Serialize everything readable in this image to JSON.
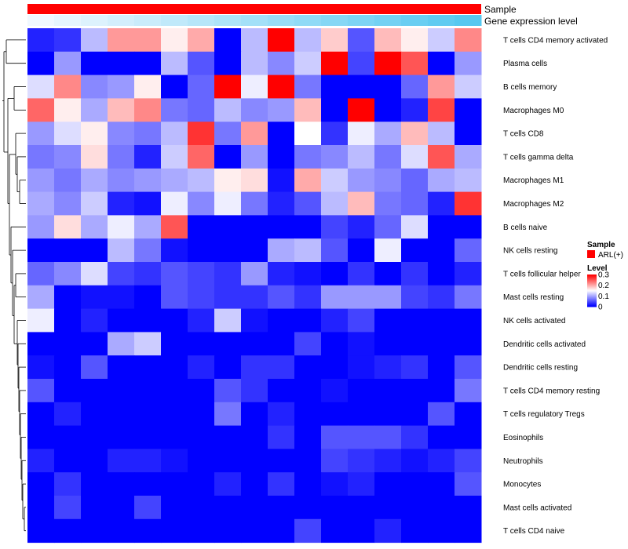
{
  "chart_data": {
    "type": "heatmap",
    "title": "",
    "rows": [
      "T cells CD4 memory activated",
      "Plasma cells",
      "B cells memory",
      "Macrophages M0",
      "T cells CD8",
      "T cells gamma delta",
      "Macrophages M1",
      "Macrophages M2",
      "B cells naive",
      "NK cells resting",
      "T cells follicular helper",
      "Mast cells resting",
      "NK cells activated",
      "Dendritic cells activated",
      "Dendritic cells resting",
      "T cells CD4 memory resting",
      "T cells regulatory  Tregs",
      "Eosinophils",
      "Neutrophils",
      "Monocytes",
      "Mast cells activated",
      "T cells CD4 naive"
    ],
    "n_columns": 17,
    "values": [
      [
        0.02,
        0.03,
        0.11,
        0.21,
        0.21,
        0.16,
        0.2,
        0.0,
        0.11,
        0.3,
        0.11,
        0.18,
        0.05,
        0.19,
        0.16,
        0.12,
        0.22
      ],
      [
        0.0,
        0.09,
        0.0,
        0.0,
        0.0,
        0.11,
        0.05,
        0.0,
        0.11,
        0.08,
        0.12,
        0.3,
        0.04,
        0.3,
        0.25,
        0.0,
        0.09
      ],
      [
        0.13,
        0.22,
        0.08,
        0.09,
        0.16,
        0.0,
        0.06,
        0.3,
        0.14,
        0.3,
        0.07,
        0.0,
        0.0,
        0.0,
        0.06,
        0.21,
        0.12
      ],
      [
        0.24,
        0.16,
        0.1,
        0.19,
        0.22,
        0.07,
        0.06,
        0.11,
        0.08,
        0.09,
        0.19,
        0.0,
        0.3,
        0.0,
        0.02,
        0.26,
        0.0
      ],
      [
        0.09,
        0.13,
        0.16,
        0.08,
        0.07,
        0.11,
        0.27,
        0.07,
        0.21,
        0.0,
        0.15,
        0.03,
        0.14,
        0.1,
        0.19,
        0.11,
        0.0
      ],
      [
        0.07,
        0.08,
        0.17,
        0.07,
        0.02,
        0.12,
        0.24,
        0.0,
        0.09,
        0.0,
        0.07,
        0.08,
        0.11,
        0.07,
        0.13,
        0.25,
        0.1
      ],
      [
        0.09,
        0.07,
        0.1,
        0.08,
        0.09,
        0.1,
        0.11,
        0.16,
        0.17,
        0.01,
        0.2,
        0.12,
        0.09,
        0.08,
        0.06,
        0.1,
        0.11
      ],
      [
        0.1,
        0.08,
        0.12,
        0.02,
        0.01,
        0.14,
        0.08,
        0.14,
        0.07,
        0.02,
        0.05,
        0.11,
        0.19,
        0.07,
        0.06,
        0.02,
        0.27
      ],
      [
        0.09,
        0.17,
        0.1,
        0.14,
        0.1,
        0.25,
        0.0,
        0.0,
        0.0,
        0.0,
        0.0,
        0.04,
        0.02,
        0.06,
        0.13,
        0.0,
        0.0
      ],
      [
        0.0,
        0.0,
        0.0,
        0.11,
        0.07,
        0.01,
        0.0,
        0.0,
        0.0,
        0.1,
        0.11,
        0.05,
        0.0,
        0.14,
        0.0,
        0.0,
        0.06
      ],
      [
        0.06,
        0.08,
        0.13,
        0.04,
        0.03,
        0.05,
        0.04,
        0.03,
        0.09,
        0.02,
        0.01,
        0.0,
        0.03,
        0.0,
        0.03,
        0.0,
        0.02
      ],
      [
        0.1,
        0.0,
        0.01,
        0.01,
        0.0,
        0.05,
        0.04,
        0.03,
        0.03,
        0.05,
        0.03,
        0.09,
        0.09,
        0.09,
        0.04,
        0.03,
        0.07
      ],
      [
        0.14,
        0.0,
        0.02,
        0.0,
        0.0,
        0.0,
        0.02,
        0.12,
        0.01,
        0.0,
        0.0,
        0.02,
        0.04,
        0.0,
        0.0,
        0.0,
        0.0
      ],
      [
        0.0,
        0.0,
        0.0,
        0.1,
        0.12,
        0.0,
        0.0,
        0.0,
        0.0,
        0.0,
        0.04,
        0.0,
        0.01,
        0.0,
        0.0,
        0.0,
        0.0
      ],
      [
        0.01,
        0.0,
        0.05,
        0.0,
        0.0,
        0.0,
        0.02,
        0.0,
        0.03,
        0.03,
        0.0,
        0.0,
        0.01,
        0.02,
        0.03,
        0.0,
        0.05
      ],
      [
        0.05,
        0.0,
        0.0,
        0.0,
        0.0,
        0.0,
        0.0,
        0.05,
        0.03,
        0.0,
        0.0,
        0.01,
        0.0,
        0.0,
        0.0,
        0.0,
        0.07
      ],
      [
        0.0,
        0.02,
        0.0,
        0.0,
        0.0,
        0.0,
        0.0,
        0.07,
        0.0,
        0.02,
        0.0,
        0.0,
        0.0,
        0.0,
        0.0,
        0.05,
        0.0
      ],
      [
        0.0,
        0.0,
        0.0,
        0.0,
        0.0,
        0.0,
        0.0,
        0.0,
        0.0,
        0.03,
        0.0,
        0.05,
        0.05,
        0.05,
        0.03,
        0.0,
        0.0
      ],
      [
        0.02,
        0.0,
        0.0,
        0.02,
        0.02,
        0.01,
        0.0,
        0.0,
        0.0,
        0.0,
        0.0,
        0.04,
        0.03,
        0.02,
        0.01,
        0.02,
        0.04
      ],
      [
        0.0,
        0.03,
        0.0,
        0.0,
        0.0,
        0.0,
        0.0,
        0.02,
        0.0,
        0.03,
        0.0,
        0.01,
        0.02,
        0.0,
        0.0,
        0.0,
        0.05
      ],
      [
        0.0,
        0.04,
        0.0,
        0.0,
        0.04,
        0.0,
        0.0,
        0.0,
        0.0,
        0.0,
        0.0,
        0.0,
        0.0,
        0.0,
        0.0,
        0.0,
        0.0
      ],
      [
        0.0,
        0.0,
        0.0,
        0.0,
        0.0,
        0.0,
        0.0,
        0.0,
        0.0,
        0.0,
        0.04,
        0.0,
        0.0,
        0.02,
        0.0,
        0.0,
        0.0
      ]
    ],
    "column_annotations": [
      {
        "label": "Sample",
        "value": "ARL(+)",
        "color": "#ff0000"
      },
      {
        "label": "Gene expression level",
        "gradient": [
          "#f0f8ff",
          "#56c8f0"
        ]
      }
    ],
    "legends": {
      "sample": {
        "title": "Sample",
        "items": [
          {
            "label": "ARL(+)",
            "color": "#ff0000"
          }
        ]
      },
      "level": {
        "title": "Level",
        "ticks": [
          "0.3",
          "0.2",
          "0.1",
          "0"
        ],
        "range": [
          0,
          0.3
        ]
      }
    },
    "color_scale": {
      "low": "#0000ff",
      "mid": "#ffffff",
      "high": "#ff0000",
      "range": [
        0,
        0.3
      ],
      "midpoint": 0.15
    },
    "row_dendrogram": true
  }
}
